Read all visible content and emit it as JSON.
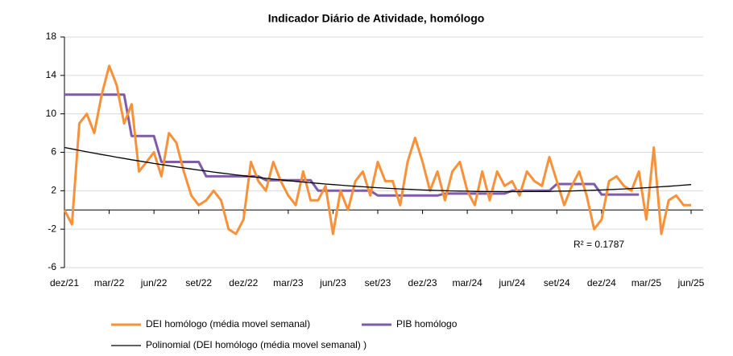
{
  "chart_data": {
    "type": "line",
    "title": "Indicador Diário de Atividade, homólogo",
    "categories": [
      "dez/21",
      null,
      null,
      null,
      null,
      null,
      "mar/22",
      null,
      null,
      null,
      null,
      null,
      "jun/22",
      null,
      null,
      null,
      null,
      null,
      "set/22",
      null,
      null,
      null,
      null,
      null,
      "dez/22",
      null,
      null,
      null,
      null,
      null,
      "mar/23",
      null,
      null,
      null,
      null,
      null,
      "jun/23",
      null,
      null,
      null,
      null,
      null,
      "set/23",
      null,
      null,
      null,
      null,
      null,
      "dez/23",
      null,
      null,
      null,
      null,
      null,
      "mar/24",
      null,
      null,
      null,
      null,
      null,
      "jun/24",
      null,
      null,
      null,
      null,
      null,
      "set/24",
      null,
      null,
      null,
      null,
      null,
      "dez/24",
      null,
      null,
      null,
      null,
      null,
      "mar/25",
      null,
      null,
      null,
      null,
      null,
      "jun/25"
    ],
    "series": [
      {
        "name": "DEI homólogo (média movel semanal)",
        "color": "#f7923a",
        "width": 3,
        "values": [
          0,
          -1.5,
          9,
          10,
          8,
          12,
          15,
          13,
          9,
          11,
          4,
          5,
          6,
          3.5,
          8,
          7,
          4,
          1.5,
          0.5,
          1,
          2,
          1,
          -2,
          -2.5,
          -1,
          5,
          3,
          2,
          5,
          3,
          1.5,
          0.5,
          4,
          1,
          1,
          2.5,
          -2.5,
          2,
          0,
          3,
          4,
          1.5,
          5,
          3,
          3,
          0.5,
          5,
          7.5,
          5,
          2,
          4,
          1,
          4,
          5,
          2,
          0.5,
          4,
          1,
          4,
          2.5,
          3,
          1.5,
          4,
          3,
          2.5,
          5.5,
          3,
          0.5,
          2.5,
          4,
          1.5,
          -2,
          -1,
          3,
          3.5,
          2.5,
          2,
          4,
          -1,
          6.5,
          -2.5,
          1,
          1.5,
          0.5,
          0.5
        ]
      },
      {
        "name": "PIB homólogo",
        "color": "#7f5ca8",
        "width": 3,
        "values": [
          12,
          12,
          12,
          12,
          12,
          12,
          12,
          12,
          12,
          7.7,
          7.7,
          7.7,
          7.7,
          5,
          5,
          5,
          5,
          5,
          5,
          3.5,
          3.5,
          3.5,
          3.5,
          3.5,
          3.5,
          3.5,
          3.5,
          3.1,
          3.1,
          3.1,
          3.1,
          3.1,
          3.1,
          3.1,
          2,
          2,
          2,
          2,
          2,
          2,
          2,
          2,
          1.5,
          1.5,
          1.5,
          1.5,
          1.5,
          1.5,
          1.5,
          1.5,
          1.5,
          1.7,
          1.7,
          1.7,
          1.7,
          1.7,
          1.7,
          1.7,
          1.7,
          1.7,
          2,
          2,
          2,
          2,
          2,
          2,
          2.7,
          2.7,
          2.7,
          2.7,
          2.7,
          2.7,
          1.6,
          1.6,
          1.6,
          1.6,
          1.6,
          1.6,
          null,
          null,
          null,
          null,
          null,
          null,
          null
        ]
      },
      {
        "name": "Polinomial (DEI homólogo (média movel semanal) )",
        "color": "#000000",
        "width": 1.3,
        "values": [
          6.5,
          6.35,
          6.2,
          6.05,
          5.91,
          5.77,
          5.63,
          5.49,
          5.36,
          5.22,
          5.1,
          4.97,
          4.84,
          4.72,
          4.6,
          4.49,
          4.37,
          4.26,
          4.15,
          4.05,
          3.94,
          3.84,
          3.75,
          3.65,
          3.56,
          3.47,
          3.38,
          3.29,
          3.21,
          3.13,
          3.05,
          2.97,
          2.9,
          2.83,
          2.76,
          2.7,
          2.64,
          2.58,
          2.52,
          2.46,
          2.41,
          2.36,
          2.31,
          2.27,
          2.23,
          2.19,
          2.15,
          2.12,
          2.08,
          2.05,
          2.03,
          2,
          1.98,
          1.96,
          1.95,
          1.93,
          1.92,
          1.91,
          1.91,
          1.9,
          1.9,
          1.9,
          1.91,
          1.91,
          1.92,
          1.93,
          1.95,
          1.96,
          1.98,
          2,
          2.03,
          2.05,
          2.08,
          2.12,
          2.15,
          2.19,
          2.23,
          2.27,
          2.31,
          2.36,
          2.41,
          2.46,
          2.52,
          2.58,
          2.64
        ]
      }
    ],
    "annotation": "R² = 0.1787",
    "ylim": [
      -6,
      18
    ],
    "yticks": [
      -6,
      -2,
      2,
      6,
      10,
      14,
      18
    ],
    "grid": true
  }
}
